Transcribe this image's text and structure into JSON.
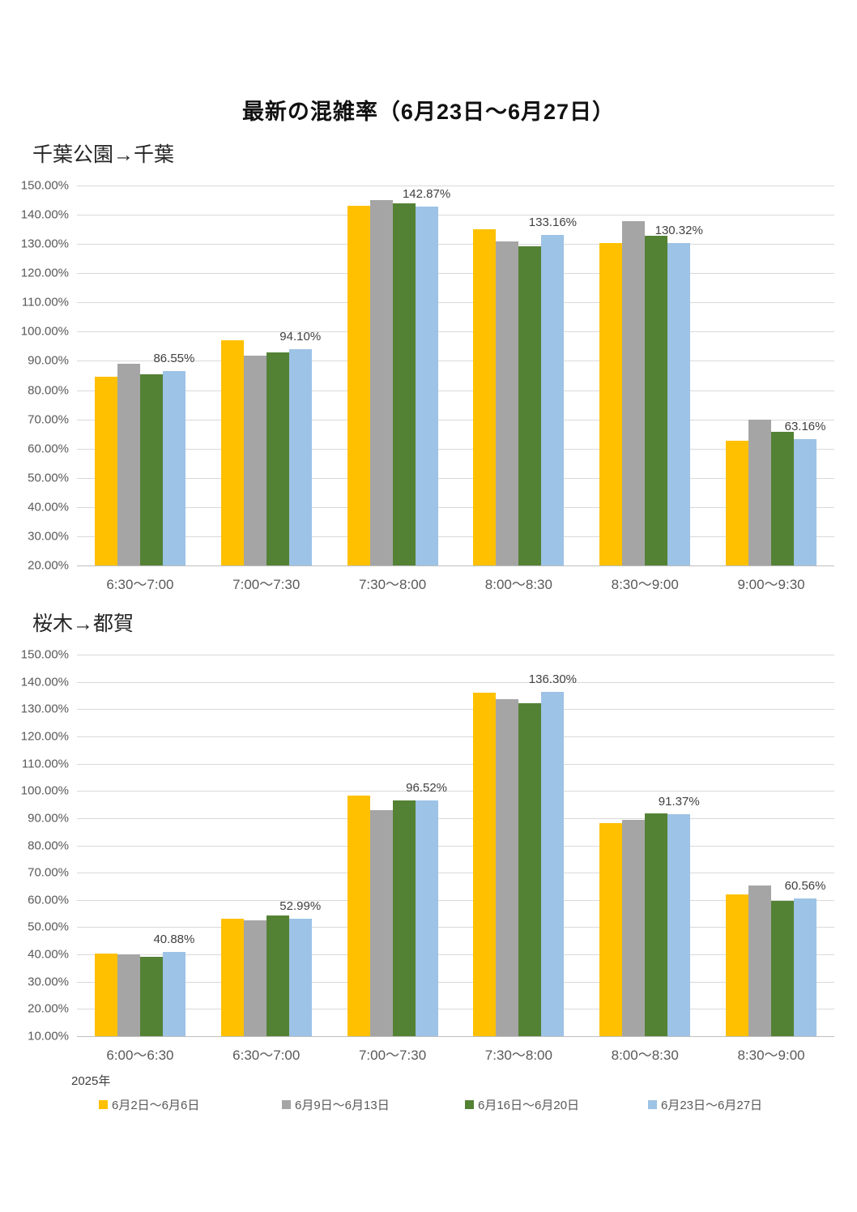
{
  "page": {
    "title": "最新の混雑率（6月23日～6月27日）"
  },
  "legend": {
    "year_label": "2025年",
    "items": [
      {
        "label": "6月2日～6月6日",
        "color": "#FFC000"
      },
      {
        "label": "6月9日～6月13日",
        "color": "#A5A5A5"
      },
      {
        "label": "6月16日～6月20日",
        "color": "#548235"
      },
      {
        "label": "6月23日～6月27日",
        "color": "#9DC3E6"
      }
    ]
  },
  "chart_data": [
    {
      "type": "bar",
      "title": "千葉公園→千葉",
      "categories": [
        "6:30～7:00",
        "7:00～7:30",
        "7:30～8:00",
        "8:00～8:30",
        "8:30～9:00",
        "9:00～9:30"
      ],
      "series": [
        {
          "name": "6月2日～6月6日",
          "color": "#FFC000",
          "values": [
            84.6,
            97.2,
            143.0,
            135.1,
            130.3,
            62.8
          ]
        },
        {
          "name": "6月9日～6月13日",
          "color": "#A5A5A5",
          "values": [
            88.9,
            91.7,
            145.0,
            131.0,
            137.8,
            69.9
          ]
        },
        {
          "name": "6月16日～6月20日",
          "color": "#548235",
          "values": [
            85.5,
            93.0,
            144.0,
            129.1,
            132.8,
            65.7
          ]
        },
        {
          "name": "6月23日～6月27日",
          "color": "#9DC3E6",
          "values": [
            86.55,
            94.1,
            142.87,
            133.16,
            130.32,
            63.16
          ],
          "data_labels": [
            "86.55%",
            "94.10%",
            "142.87%",
            "133.16%",
            "130.32%",
            "63.16%"
          ]
        }
      ],
      "ylim": [
        20,
        150
      ],
      "ylabel": "",
      "xlabel": "",
      "grid": true,
      "yticks": [
        "150.00%",
        "140.00%",
        "130.00%",
        "120.00%",
        "110.00%",
        "100.00%",
        "90.00%",
        "80.00%",
        "70.00%",
        "60.00%",
        "50.00%",
        "40.00%",
        "30.00%",
        "20.00%"
      ]
    },
    {
      "type": "bar",
      "title": "桜木→都賀",
      "categories": [
        "6:00～6:30",
        "6:30～7:00",
        "7:00～7:30",
        "7:30～8:00",
        "8:00～8:30",
        "8:30～9:00"
      ],
      "series": [
        {
          "name": "6月2日～6月6日",
          "color": "#FFC000",
          "values": [
            40.3,
            53.0,
            98.4,
            136.1,
            88.3,
            62.0
          ]
        },
        {
          "name": "6月9日～6月13日",
          "color": "#A5A5A5",
          "values": [
            40.0,
            52.6,
            93.0,
            133.6,
            89.3,
            65.2
          ]
        },
        {
          "name": "6月16日～6月20日",
          "color": "#548235",
          "values": [
            39.2,
            54.3,
            96.5,
            132.3,
            91.7,
            59.6
          ]
        },
        {
          "name": "6月23日～6月27日",
          "color": "#9DC3E6",
          "values": [
            40.88,
            52.99,
            96.52,
            136.3,
            91.37,
            60.56
          ],
          "data_labels": [
            "40.88%",
            "52.99%",
            "96.52%",
            "136.30%",
            "91.37%",
            "60.56%"
          ]
        }
      ],
      "ylim": [
        10,
        150
      ],
      "ylabel": "",
      "xlabel": "",
      "grid": true,
      "yticks": [
        "150.00%",
        "140.00%",
        "130.00%",
        "120.00%",
        "110.00%",
        "100.00%",
        "90.00%",
        "80.00%",
        "70.00%",
        "60.00%",
        "50.00%",
        "40.00%",
        "30.00%",
        "20.00%",
        "10.00%"
      ]
    }
  ]
}
